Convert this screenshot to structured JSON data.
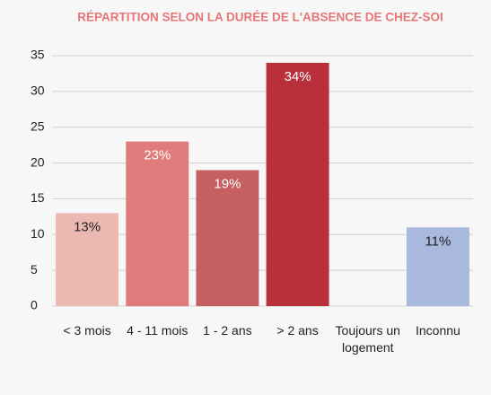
{
  "chart_data": {
    "type": "bar",
    "title": "RÉPARTITION SELON LA DURÉE DE L'ABSENCE DE CHEZ-SOI",
    "categories": [
      "< 3 mois",
      "4 - 11 mois",
      "1 - 2 ans",
      "> 2 ans",
      "Toujours un logement",
      "Inconnu"
    ],
    "values": [
      13,
      23,
      19,
      34,
      null,
      11
    ],
    "value_labels": [
      "13%",
      "23%",
      "19%",
      "34%",
      null,
      "11%"
    ],
    "colors": [
      "#ecb8b2",
      "#e07b7b",
      "#c65f61",
      "#b9303b",
      null,
      "#a9b8dd"
    ],
    "ylim": [
      0,
      35
    ],
    "yticks": [
      0,
      5,
      10,
      15,
      20,
      25,
      30,
      35
    ],
    "grid": true
  }
}
